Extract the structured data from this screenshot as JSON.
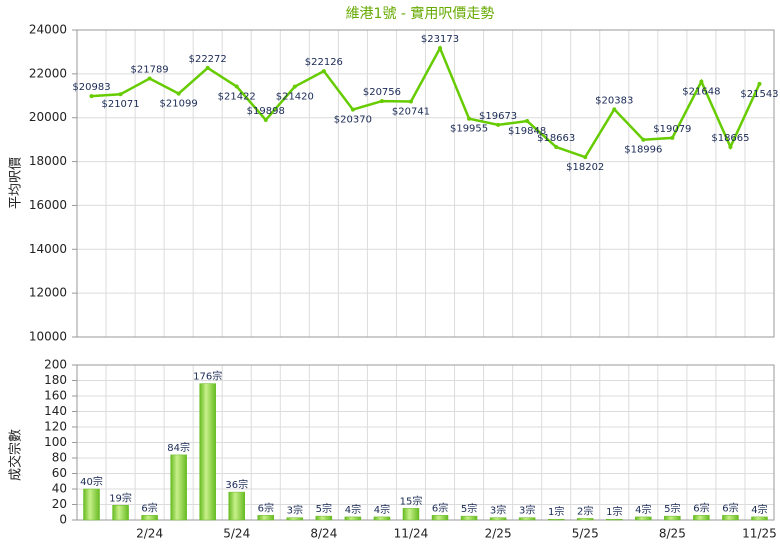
{
  "chart_data": [
    {
      "type": "line",
      "title": "維港1號 - 實用呎價走勢",
      "y_label": "平均呎價",
      "series": [
        {
          "name": "平均呎價",
          "color": "#66cc00",
          "values": [
            20983,
            21071,
            21789,
            21099,
            22272,
            21422,
            19898,
            21420,
            22126,
            20370,
            20756,
            20741,
            23173,
            19955,
            19673,
            19848,
            18663,
            18202,
            20383,
            18996,
            19079,
            21648,
            18665,
            21543
          ],
          "value_labels": [
            "$20983",
            "$21071",
            "$21789",
            "$21099",
            "$22272",
            "$21422",
            "$19898",
            "$21420",
            "$22126",
            "$20370",
            "$20756",
            "$20741",
            "$23173",
            "$19955",
            "$19673",
            "$19848",
            "$18663",
            "$18202",
            "$20383",
            "$18996",
            "$19079",
            "$21648",
            "$18665",
            "$21543"
          ]
        }
      ],
      "ylim": [
        10000,
        24000
      ],
      "yticks": [
        10000,
        12000,
        14000,
        16000,
        18000,
        20000,
        22000,
        24000
      ],
      "grid": true
    },
    {
      "type": "bar",
      "y_label": "成交宗數",
      "categories": [
        null,
        null,
        "2/24",
        null,
        null,
        "5/24",
        null,
        null,
        "8/24",
        null,
        null,
        "11/24",
        null,
        null,
        "2/25",
        null,
        null,
        "5/25",
        null,
        null,
        "8/25",
        null,
        null,
        "11/25"
      ],
      "series": [
        {
          "name": "成交宗數",
          "color": "#66bb22",
          "values": [
            40,
            19,
            6,
            84,
            176,
            36,
            6,
            3,
            5,
            4,
            4,
            15,
            6,
            5,
            3,
            3,
            1,
            2,
            1,
            4,
            5,
            6,
            6,
            4
          ],
          "value_labels": [
            "40宗",
            "19宗",
            "6宗",
            "84宗",
            "176宗",
            "36宗",
            "6宗",
            "3宗",
            "5宗",
            "4宗",
            "4宗",
            "15宗",
            "6宗",
            "5宗",
            "3宗",
            "3宗",
            "1宗",
            "2宗",
            "1宗",
            "4宗",
            "5宗",
            "6宗",
            "6宗",
            "4宗"
          ]
        }
      ],
      "ylim": [
        0,
        200
      ],
      "yticks": [
        0,
        20,
        40,
        60,
        80,
        100,
        120,
        140,
        160,
        180,
        200
      ],
      "grid": true
    }
  ]
}
